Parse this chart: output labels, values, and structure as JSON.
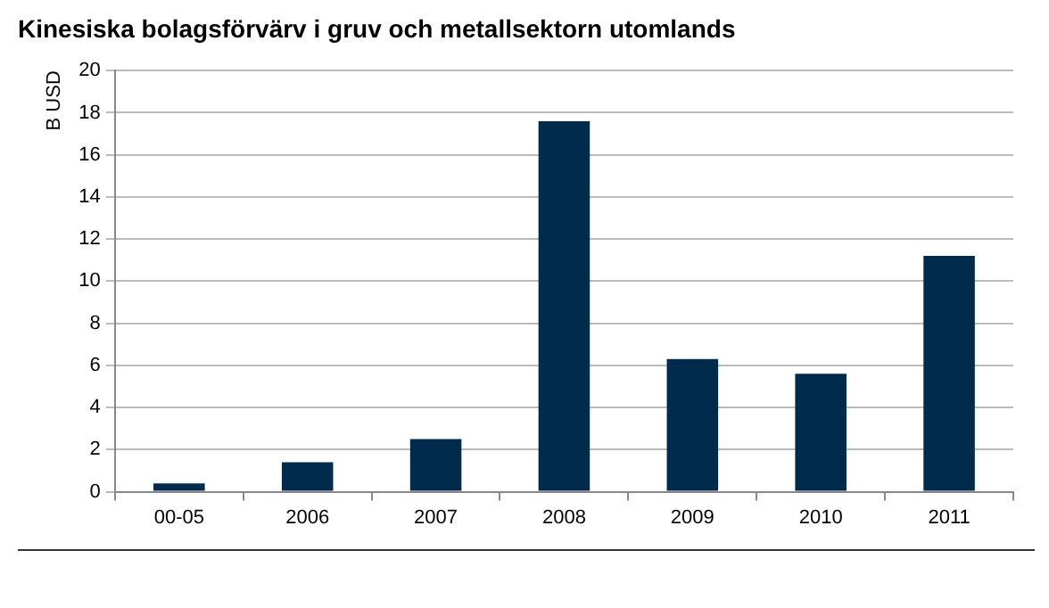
{
  "chart_data": {
    "type": "bar",
    "title": "Kinesiska bolagsförvärv i gruv och metallsektorn utomlands",
    "ylabel": "B USD",
    "categories": [
      "00-05",
      "2006",
      "2007",
      "2008",
      "2009",
      "2010",
      "2011"
    ],
    "values": [
      0.4,
      1.4,
      2.5,
      17.6,
      6.3,
      5.6,
      11.2
    ],
    "color": "#002b4c",
    "ylim": [
      0,
      20
    ],
    "yticks": [
      0,
      2,
      4,
      6,
      8,
      10,
      12,
      14,
      16,
      18,
      20
    ],
    "grid": "y"
  }
}
